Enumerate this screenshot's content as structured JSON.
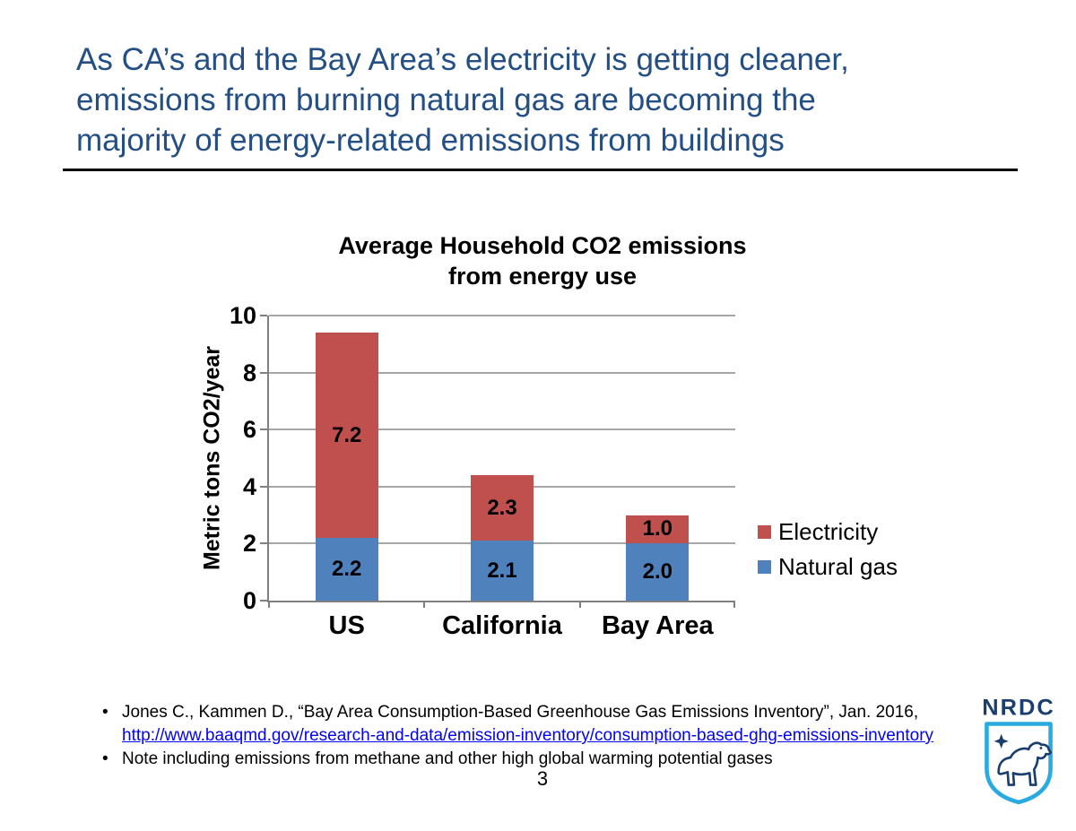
{
  "slide": {
    "title_lines": [
      "As CA’s and the Bay Area’s electricity is getting cleaner,",
      "emissions from burning natural gas are becoming the",
      "majority of energy-related emissions from buildings"
    ],
    "title_color": "#234F85",
    "page_number": "3"
  },
  "chart_data": {
    "type": "bar",
    "stacked": true,
    "title": "Average Household CO2 emissions from energy use",
    "title_lines": [
      "Average Household CO2 emissions",
      "from energy use"
    ],
    "xlabel": "",
    "ylabel": "Metric tons CO2/year",
    "categories": [
      "US",
      "California",
      "Bay Area"
    ],
    "series": [
      {
        "name": "Natural gas",
        "color": "#4F81BD",
        "values": [
          2.2,
          2.1,
          2.0
        ]
      },
      {
        "name": "Electricity",
        "color": "#C0504D",
        "values": [
          7.2,
          2.3,
          1.0
        ]
      }
    ],
    "totals": [
      9.4,
      4.4,
      3.0
    ],
    "ylim": [
      0,
      10
    ],
    "ytick_step": 2,
    "grid": true,
    "gridline_color": "#A6A6A6",
    "axis_color": "#808080",
    "legend_position": "right",
    "legend_order": [
      "Electricity",
      "Natural gas"
    ],
    "data_labels": true
  },
  "footer": {
    "bullet_glyph": "•",
    "bullets": [
      {
        "text": "Jones C., Kammen D., “Bay Area Consumption-Based Greenhouse Gas Emissions Inventory”, Jan. 2016,",
        "link": "http://www.baaqmd.gov/research-and-data/emission-inventory/consumption-based-ghg-emissions-inventory"
      },
      {
        "text": "Note including emissions from methane and other high global warming potential gases",
        "link": ""
      }
    ]
  },
  "logo": {
    "text": "NRDC",
    "navy": "#1A3E6E",
    "light_blue": "#29ABE2"
  }
}
